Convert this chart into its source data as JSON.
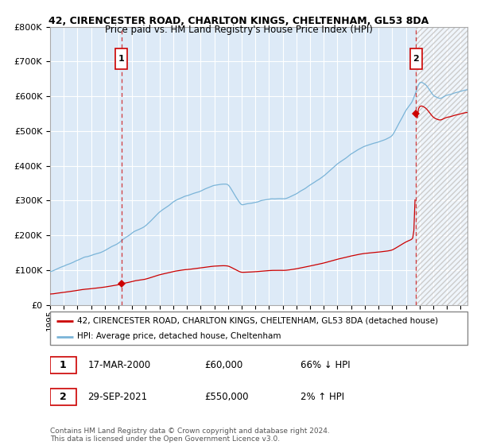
{
  "title_line1": "42, CIRENCESTER ROAD, CHARLTON KINGS, CHELTENHAM, GL53 8DA",
  "title_line2": "Price paid vs. HM Land Registry's House Price Index (HPI)",
  "yticks": [
    0,
    100000,
    200000,
    300000,
    400000,
    500000,
    600000,
    700000,
    800000
  ],
  "ytick_labels": [
    "£0",
    "£100K",
    "£200K",
    "£300K",
    "£400K",
    "£500K",
    "£600K",
    "£700K",
    "£800K"
  ],
  "hpi_color": "#7ab4d8",
  "price_color": "#cc0000",
  "plot_bg": "#ddeaf7",
  "grid_color": "#ffffff",
  "legend_line1": "42, CIRENCESTER ROAD, CHARLTON KINGS, CHELTENHAM, GL53 8DA (detached house)",
  "legend_line2": "HPI: Average price, detached house, Cheltenham",
  "sale1_date": "17-MAR-2000",
  "sale1_price": 60000,
  "sale1_hpi_pct": "66% ↓ HPI",
  "sale2_date": "29-SEP-2021",
  "sale2_price": 550000,
  "sale2_hpi_pct": "2% ↑ HPI",
  "copyright_text": "Contains HM Land Registry data © Crown copyright and database right 2024.\nThis data is licensed under the Open Government Licence v3.0.",
  "sale1_x": 2000.21,
  "sale2_x": 2021.74,
  "xmin": 1995.0,
  "xmax": 2025.5,
  "ylim": [
    0,
    800000
  ],
  "hatch_start": 2021.74,
  "hpi_anchors_x": [
    1995,
    1996,
    1997,
    1998,
    1999,
    2000,
    2001,
    2002,
    2003,
    2004,
    2005,
    2006,
    2007,
    2008,
    2009,
    2010,
    2011,
    2012,
    2013,
    2014,
    2015,
    2016,
    2017,
    2018,
    2019,
    2020,
    2021,
    2021.5,
    2022,
    2022.5,
    2023,
    2023.5,
    2024,
    2024.5,
    2025,
    2025.5
  ],
  "hpi_anchors_y": [
    95000,
    108000,
    123000,
    140000,
    158000,
    178000,
    210000,
    230000,
    265000,
    295000,
    315000,
    330000,
    345000,
    350000,
    285000,
    295000,
    305000,
    305000,
    320000,
    345000,
    375000,
    410000,
    440000,
    465000,
    480000,
    495000,
    570000,
    595000,
    650000,
    640000,
    610000,
    600000,
    610000,
    615000,
    620000,
    625000
  ]
}
